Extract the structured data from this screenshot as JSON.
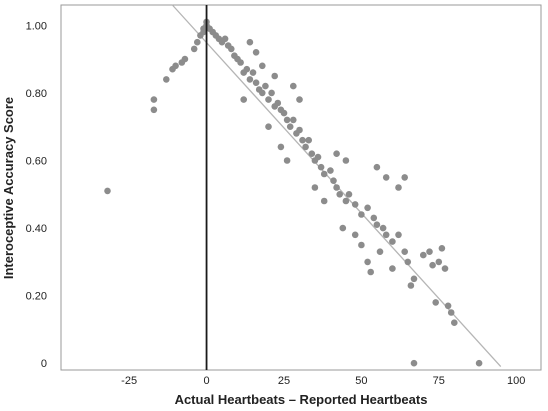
{
  "chart_data": {
    "type": "scatter",
    "xlabel": "Actual Heartbeats – Reported Heartbeats",
    "ylabel": "Interoceptive Accuracy Score",
    "xlim": [
      -47,
      108
    ],
    "ylim": [
      -0.02,
      1.06
    ],
    "x_ticks": [
      "-25",
      "0",
      "25",
      "50",
      "75",
      "100"
    ],
    "x_tick_values": [
      -25,
      0,
      25,
      50,
      75,
      100
    ],
    "y_ticks": [
      "0",
      "0.20",
      "0.40",
      "0.60",
      "0.80",
      "1.00"
    ],
    "y_tick_values": [
      0,
      0.2,
      0.4,
      0.6,
      0.8,
      1.0
    ],
    "grid": false,
    "colors": {
      "points": "#8c8c8c",
      "fit_line": "#b5b5b5",
      "zero_line": "#1a1a1a",
      "frame": "#999999"
    },
    "zero_line_x": 0,
    "fit_line": [
      [
        -15,
        1.1
      ],
      [
        95,
        -0.01
      ]
    ],
    "points": [
      [
        -32,
        0.51
      ],
      [
        -17,
        0.78
      ],
      [
        -17,
        0.75
      ],
      [
        -13,
        0.84
      ],
      [
        -11,
        0.87
      ],
      [
        -10,
        0.88
      ],
      [
        -8,
        0.89
      ],
      [
        -7,
        0.9
      ],
      [
        -4,
        0.93
      ],
      [
        -3,
        0.95
      ],
      [
        -2,
        0.97
      ],
      [
        -1,
        0.98
      ],
      [
        -1,
        0.99
      ],
      [
        0,
        1.0
      ],
      [
        0,
        1.01
      ],
      [
        1,
        0.99
      ],
      [
        2,
        0.98
      ],
      [
        3,
        0.97
      ],
      [
        4,
        0.96
      ],
      [
        5,
        0.95
      ],
      [
        6,
        0.96
      ],
      [
        7,
        0.94
      ],
      [
        8,
        0.93
      ],
      [
        9,
        0.91
      ],
      [
        10,
        0.9
      ],
      [
        11,
        0.89
      ],
      [
        12,
        0.86
      ],
      [
        13,
        0.87
      ],
      [
        14,
        0.84
      ],
      [
        15,
        0.86
      ],
      [
        16,
        0.83
      ],
      [
        17,
        0.81
      ],
      [
        18,
        0.8
      ],
      [
        19,
        0.82
      ],
      [
        20,
        0.78
      ],
      [
        21,
        0.8
      ],
      [
        22,
        0.76
      ],
      [
        23,
        0.77
      ],
      [
        24,
        0.75
      ],
      [
        25,
        0.74
      ],
      [
        26,
        0.72
      ],
      [
        27,
        0.7
      ],
      [
        28,
        0.72
      ],
      [
        29,
        0.68
      ],
      [
        30,
        0.69
      ],
      [
        31,
        0.66
      ],
      [
        32,
        0.64
      ],
      [
        33,
        0.66
      ],
      [
        34,
        0.62
      ],
      [
        35,
        0.6
      ],
      [
        36,
        0.61
      ],
      [
        37,
        0.58
      ],
      [
        38,
        0.56
      ],
      [
        40,
        0.57
      ],
      [
        41,
        0.54
      ],
      [
        42,
        0.52
      ],
      [
        43,
        0.5
      ],
      [
        45,
        0.48
      ],
      [
        46,
        0.5
      ],
      [
        48,
        0.47
      ],
      [
        50,
        0.44
      ],
      [
        52,
        0.46
      ],
      [
        54,
        0.43
      ],
      [
        55,
        0.41
      ],
      [
        57,
        0.4
      ],
      [
        58,
        0.38
      ],
      [
        60,
        0.36
      ],
      [
        62,
        0.38
      ],
      [
        64,
        0.33
      ],
      [
        65,
        0.3
      ],
      [
        66,
        0.23
      ],
      [
        67,
        0.25
      ],
      [
        70,
        0.32
      ],
      [
        72,
        0.33
      ],
      [
        73,
        0.29
      ],
      [
        74,
        0.18
      ],
      [
        75,
        0.3
      ],
      [
        76,
        0.34
      ],
      [
        77,
        0.28
      ],
      [
        78,
        0.17
      ],
      [
        79,
        0.15
      ],
      [
        80,
        0.12
      ],
      [
        55,
        0.58
      ],
      [
        58,
        0.55
      ],
      [
        62,
        0.52
      ],
      [
        64,
        0.55
      ],
      [
        48,
        0.38
      ],
      [
        50,
        0.35
      ],
      [
        52,
        0.3
      ],
      [
        53,
        0.27
      ],
      [
        56,
        0.33
      ],
      [
        44,
        0.4
      ],
      [
        42,
        0.62
      ],
      [
        38,
        0.48
      ],
      [
        35,
        0.52
      ],
      [
        30,
        0.78
      ],
      [
        28,
        0.82
      ],
      [
        26,
        0.6
      ],
      [
        24,
        0.64
      ],
      [
        22,
        0.85
      ],
      [
        20,
        0.7
      ],
      [
        18,
        0.88
      ],
      [
        16,
        0.92
      ],
      [
        14,
        0.95
      ],
      [
        12,
        0.78
      ],
      [
        45,
        0.6
      ],
      [
        60,
        0.28
      ],
      [
        67,
        0.0
      ],
      [
        88,
        0.0
      ]
    ]
  }
}
